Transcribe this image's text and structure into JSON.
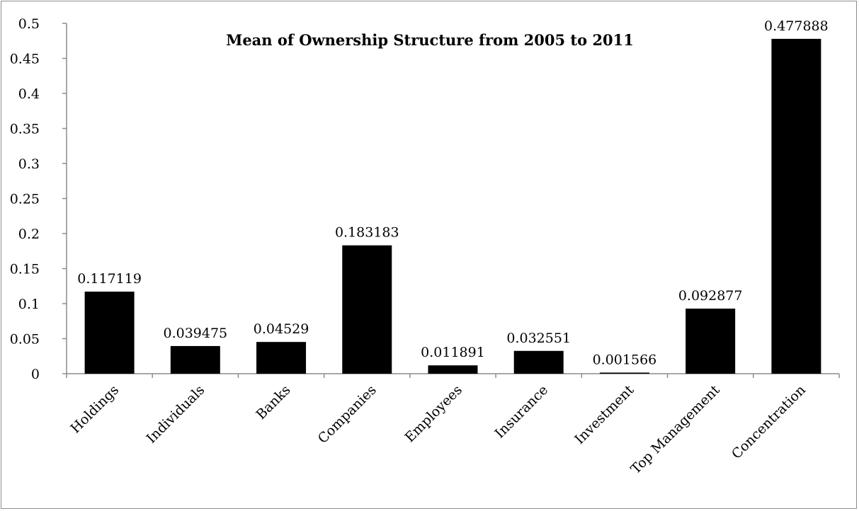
{
  "chart_data": {
    "type": "bar",
    "title": "Mean of Ownership Structure from 2005 to 2011",
    "xlabel": "",
    "ylabel": "",
    "categories": [
      "Holdings",
      "Individuals",
      "Banks",
      "Companies",
      "Employees",
      "Insurance",
      "Investment",
      "Top Management",
      "Concentration"
    ],
    "values": [
      0.117119,
      0.039475,
      0.04529,
      0.183183,
      0.011891,
      0.032551,
      0.001566,
      0.092877,
      0.477888
    ],
    "data_labels": [
      "0.117119",
      "0.039475",
      "0.04529",
      "0.183183",
      "0.011891",
      "0.032551",
      "0.001566",
      "0.092877",
      "0.477888"
    ],
    "ylim": [
      0,
      0.5
    ],
    "y_ticks": [
      0,
      0.05,
      0.1,
      0.15,
      0.2,
      0.25,
      0.3,
      0.35,
      0.4,
      0.45,
      0.5
    ],
    "y_tick_labels": [
      "0",
      "0.05",
      "0.1",
      "0.15",
      "0.2",
      "0.25",
      "0.3",
      "0.35",
      "0.4",
      "0.45",
      "0.5"
    ],
    "grid": false,
    "legend": "none",
    "bar_color": "#000000",
    "axis_color": "#8c8c8c"
  }
}
